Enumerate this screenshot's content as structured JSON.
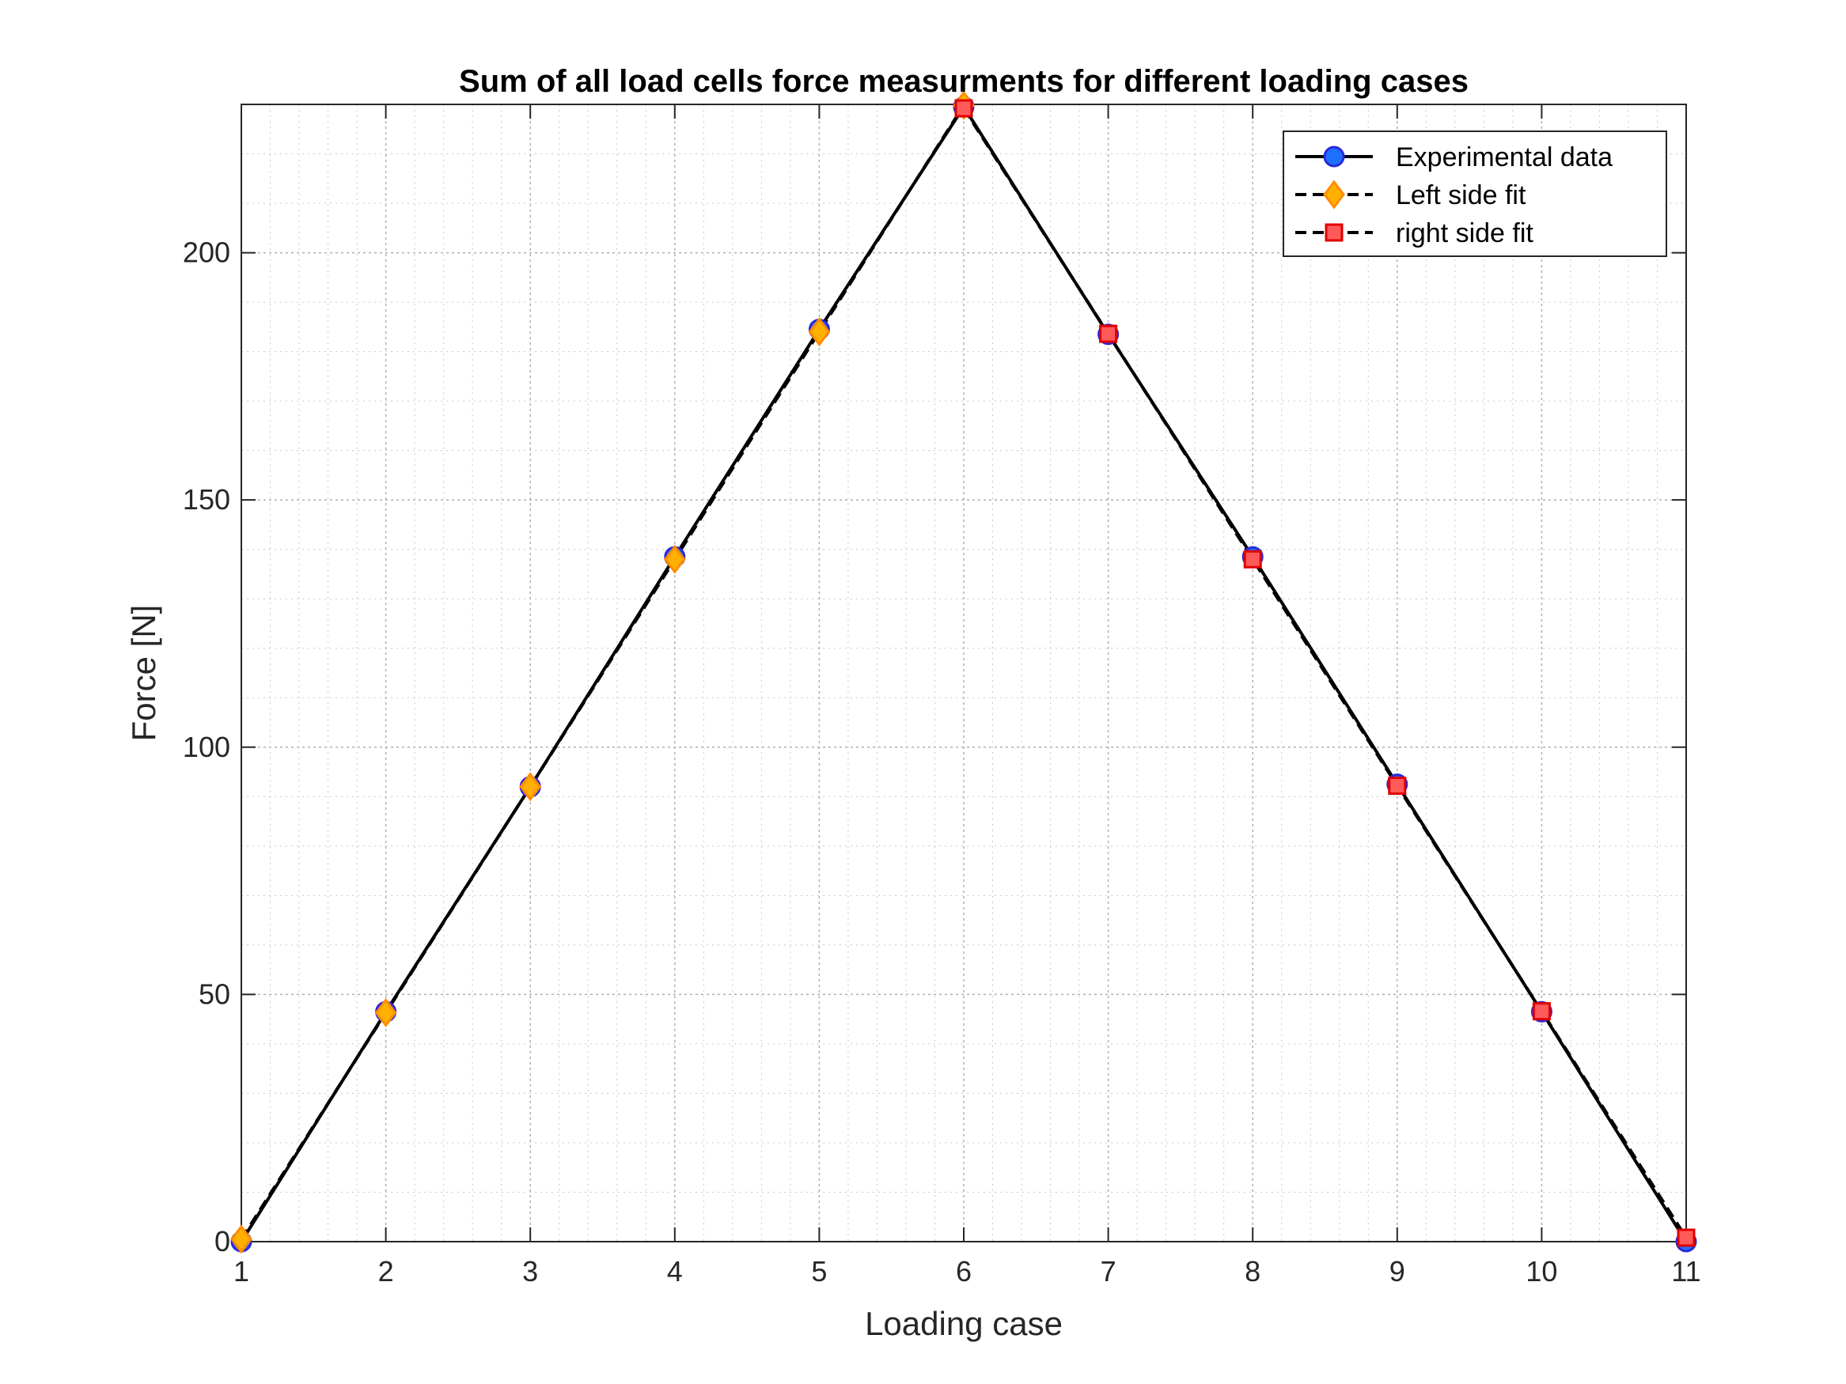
{
  "chart_data": {
    "type": "line",
    "title": "Sum of all load cells force measurments for different loading cases",
    "xlabel": "Loading case",
    "ylabel": "Force [N]",
    "xlim": [
      1,
      11
    ],
    "ylim": [
      0,
      230
    ],
    "xticks": [
      1,
      2,
      3,
      4,
      5,
      6,
      7,
      8,
      9,
      10,
      11
    ],
    "yticks": [
      0,
      50,
      100,
      150,
      200
    ],
    "grid": true,
    "minor_grid": true,
    "legend_position": "top-right",
    "series": [
      {
        "name": "Experimental data",
        "x": [
          1,
          2,
          3,
          4,
          5,
          6,
          7,
          8,
          9,
          10,
          11
        ],
        "y": [
          0,
          46.5,
          92,
          138.5,
          184.5,
          229.5,
          183.5,
          138.5,
          92.5,
          46.5,
          0
        ],
        "line_style": "solid",
        "line_color": "#000000",
        "marker": "circle",
        "marker_fill": "#1f6fff",
        "marker_edge": "#2a2ad8"
      },
      {
        "name": "Left side fit",
        "x": [
          1,
          2,
          3,
          4,
          5,
          6
        ],
        "y": [
          0.5,
          46.3,
          92,
          138,
          184,
          229.8
        ],
        "line_style": "dashed",
        "line_color": "#000000",
        "marker": "diamond",
        "marker_fill": "#ffb000",
        "marker_edge": "#ff8c00"
      },
      {
        "name": "right side fit",
        "x": [
          6,
          7,
          8,
          9,
          10,
          11
        ],
        "y": [
          229.2,
          183.6,
          138,
          92.2,
          46.6,
          0.8
        ],
        "line_style": "dashed",
        "line_color": "#000000",
        "marker": "square",
        "marker_fill": "#ff5a5a",
        "marker_edge": "#e00000"
      }
    ]
  }
}
